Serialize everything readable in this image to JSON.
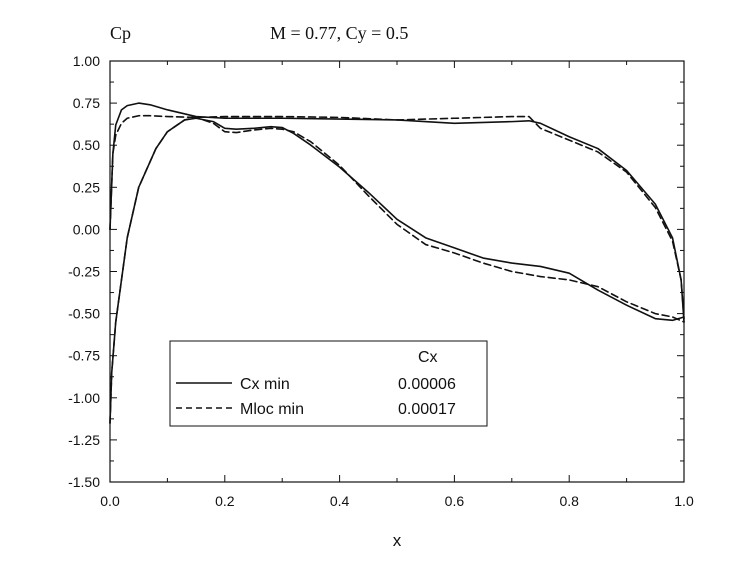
{
  "chart_data": {
    "type": "line",
    "title": "M = 0.77, Cy = 0.5",
    "ylabel": "Cp",
    "xlabel": "x",
    "xlim": [
      0.0,
      1.0
    ],
    "ylim": [
      -1.5,
      1.0
    ],
    "y_inverted": true,
    "x_ticks": [
      0.0,
      0.2,
      0.4,
      0.6,
      0.8,
      1.0
    ],
    "x_tick_labels": [
      "0.0",
      "0.2",
      "0.4",
      "0.6",
      "0.8",
      "1.0"
    ],
    "y_ticks": [
      1.0,
      0.75,
      0.5,
      0.25,
      0.0,
      -0.25,
      -0.5,
      -0.75,
      -1.0,
      -1.25,
      -1.5
    ],
    "y_tick_labels": [
      "1.00",
      "0.75",
      "0.50",
      "0.25",
      "0.00",
      "-0.25",
      "-0.50",
      "-0.75",
      "-1.00",
      "-1.25",
      "-1.50"
    ],
    "grid": false,
    "legend": {
      "position": "bottom-left",
      "header": "Cx",
      "entries": [
        {
          "name": "Cx min",
          "value": "0.00006",
          "style": "solid"
        },
        {
          "name": "Mloc min",
          "value": "0.00017",
          "style": "dashed"
        }
      ]
    },
    "series": [
      {
        "name": "Cx min",
        "style": "solid",
        "color": "#111111",
        "curves": [
          {
            "x": [
              0.0,
              0.005,
              0.01,
              0.02,
              0.03,
              0.05,
              0.07,
              0.1,
              0.15,
              0.2,
              0.3,
              0.4,
              0.5,
              0.6,
              0.7,
              0.73,
              0.75,
              0.8,
              0.85,
              0.9,
              0.95,
              0.98,
              0.995,
              1.0
            ],
            "y": [
              0.0,
              0.45,
              0.62,
              0.71,
              0.735,
              0.75,
              0.74,
              0.71,
              0.67,
              0.66,
              0.66,
              0.655,
              0.65,
              0.63,
              0.64,
              0.645,
              0.63,
              0.55,
              0.48,
              0.35,
              0.15,
              -0.05,
              -0.3,
              -0.55
            ]
          },
          {
            "x": [
              0.0,
              0.003,
              0.01,
              0.03,
              0.05,
              0.08,
              0.1,
              0.13,
              0.15,
              0.18,
              0.2,
              0.22,
              0.25,
              0.28,
              0.3,
              0.32,
              0.35,
              0.4,
              0.45,
              0.5,
              0.55,
              0.6,
              0.65,
              0.7,
              0.75,
              0.8,
              0.85,
              0.9,
              0.95,
              0.98,
              1.0
            ],
            "y": [
              -1.15,
              -0.85,
              -0.55,
              -0.05,
              0.25,
              0.48,
              0.58,
              0.65,
              0.66,
              0.64,
              0.6,
              0.595,
              0.6,
              0.61,
              0.605,
              0.57,
              0.5,
              0.37,
              0.22,
              0.06,
              -0.05,
              -0.11,
              -0.17,
              -0.2,
              -0.22,
              -0.26,
              -0.36,
              -0.45,
              -0.53,
              -0.54,
              -0.52
            ]
          }
        ]
      },
      {
        "name": "Mloc min",
        "style": "dashed",
        "color": "#111111",
        "curves": [
          {
            "x": [
              0.0,
              0.005,
              0.01,
              0.02,
              0.03,
              0.05,
              0.07,
              0.1,
              0.15,
              0.2,
              0.3,
              0.4,
              0.5,
              0.6,
              0.7,
              0.73,
              0.75,
              0.8,
              0.85,
              0.9,
              0.95,
              0.98,
              0.995,
              1.0
            ],
            "y": [
              0.0,
              0.45,
              0.56,
              0.63,
              0.66,
              0.675,
              0.675,
              0.67,
              0.665,
              0.67,
              0.67,
              0.665,
              0.65,
              0.66,
              0.67,
              0.67,
              0.6,
              0.53,
              0.46,
              0.34,
              0.13,
              -0.07,
              -0.3,
              -0.53
            ]
          },
          {
            "x": [
              0.0,
              0.003,
              0.01,
              0.03,
              0.05,
              0.08,
              0.1,
              0.13,
              0.15,
              0.18,
              0.2,
              0.22,
              0.25,
              0.28,
              0.3,
              0.32,
              0.35,
              0.4,
              0.45,
              0.5,
              0.55,
              0.6,
              0.65,
              0.7,
              0.75,
              0.8,
              0.85,
              0.9,
              0.95,
              0.98,
              1.0
            ],
            "y": [
              -1.15,
              -0.85,
              -0.55,
              -0.05,
              0.25,
              0.48,
              0.58,
              0.65,
              0.665,
              0.63,
              0.58,
              0.575,
              0.59,
              0.6,
              0.595,
              0.58,
              0.52,
              0.38,
              0.2,
              0.03,
              -0.09,
              -0.14,
              -0.2,
              -0.25,
              -0.28,
              -0.3,
              -0.34,
              -0.43,
              -0.5,
              -0.52,
              -0.55
            ]
          }
        ]
      }
    ]
  }
}
